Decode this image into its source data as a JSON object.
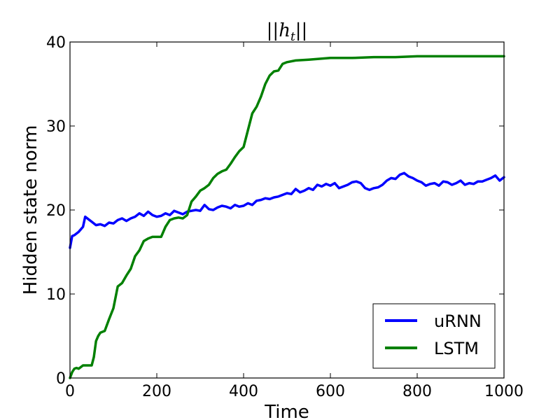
{
  "chart_data": {
    "type": "line",
    "title": "||h_t||",
    "xlabel": "Time",
    "ylabel": "Hidden state norm",
    "xlim": [
      0,
      1000
    ],
    "ylim": [
      0,
      40
    ],
    "xticks": [
      0,
      200,
      400,
      600,
      800,
      1000
    ],
    "yticks": [
      0,
      10,
      20,
      30,
      40
    ],
    "grid": false,
    "legend": "lower-right",
    "series": [
      {
        "name": "uRNN",
        "color": "#0000ff",
        "x": [
          0,
          5,
          10,
          20,
          30,
          35,
          40,
          50,
          60,
          70,
          80,
          90,
          100,
          110,
          120,
          130,
          140,
          150,
          160,
          170,
          180,
          190,
          200,
          210,
          220,
          230,
          240,
          250,
          260,
          270,
          280,
          290,
          300,
          310,
          320,
          330,
          340,
          350,
          360,
          370,
          380,
          390,
          400,
          410,
          420,
          430,
          440,
          450,
          460,
          470,
          480,
          490,
          500,
          510,
          520,
          530,
          540,
          550,
          560,
          570,
          580,
          590,
          600,
          610,
          620,
          630,
          640,
          650,
          660,
          670,
          680,
          690,
          700,
          710,
          720,
          730,
          740,
          750,
          760,
          770,
          780,
          790,
          800,
          810,
          820,
          830,
          840,
          850,
          860,
          870,
          880,
          890,
          900,
          910,
          920,
          930,
          940,
          950,
          960,
          970,
          980,
          990,
          1000
        ],
        "values": [
          15.5,
          16.9,
          17.0,
          17.4,
          18.0,
          19.2,
          19.0,
          18.6,
          18.2,
          18.3,
          18.1,
          18.5,
          18.4,
          18.8,
          19.0,
          18.7,
          19.0,
          19.2,
          19.6,
          19.3,
          19.8,
          19.4,
          19.2,
          19.3,
          19.6,
          19.4,
          19.9,
          19.7,
          19.5,
          19.8,
          19.9,
          20.0,
          19.9,
          20.6,
          20.1,
          20.0,
          20.3,
          20.5,
          20.4,
          20.2,
          20.6,
          20.4,
          20.5,
          20.8,
          20.6,
          21.1,
          21.2,
          21.4,
          21.3,
          21.5,
          21.6,
          21.8,
          22.0,
          21.9,
          22.5,
          22.1,
          22.3,
          22.6,
          22.4,
          23.0,
          22.8,
          23.1,
          22.9,
          23.2,
          22.6,
          22.8,
          23.0,
          23.3,
          23.4,
          23.2,
          22.6,
          22.4,
          22.6,
          22.7,
          23.0,
          23.5,
          23.8,
          23.7,
          24.2,
          24.4,
          24.0,
          23.8,
          23.5,
          23.3,
          22.9,
          23.1,
          23.2,
          22.9,
          23.4,
          23.3,
          23.0,
          23.2,
          23.5,
          23.0,
          23.2,
          23.1,
          23.4,
          23.4,
          23.6,
          23.8,
          24.1,
          23.5,
          23.9
        ]
      },
      {
        "name": "LSTM",
        "color": "#008000",
        "x": [
          0,
          5,
          10,
          15,
          20,
          30,
          40,
          50,
          55,
          60,
          65,
          70,
          80,
          90,
          100,
          110,
          120,
          130,
          140,
          150,
          160,
          170,
          180,
          190,
          200,
          210,
          220,
          230,
          240,
          250,
          260,
          270,
          280,
          290,
          300,
          310,
          320,
          330,
          340,
          350,
          360,
          370,
          380,
          390,
          400,
          410,
          420,
          430,
          440,
          450,
          460,
          470,
          480,
          490,
          500,
          520,
          550,
          600,
          650,
          700,
          750,
          800,
          850,
          900,
          950,
          1000
        ],
        "values": [
          0.0,
          0.7,
          1.1,
          1.2,
          1.1,
          1.5,
          1.5,
          1.5,
          2.5,
          4.4,
          5.0,
          5.4,
          5.6,
          7.0,
          8.3,
          10.9,
          11.3,
          12.2,
          13.0,
          14.5,
          15.2,
          16.3,
          16.6,
          16.8,
          16.8,
          16.8,
          18.0,
          18.8,
          19.0,
          19.1,
          19.0,
          19.4,
          21.0,
          21.6,
          22.3,
          22.6,
          23.0,
          23.8,
          24.3,
          24.6,
          24.8,
          25.5,
          26.3,
          27.0,
          27.5,
          29.5,
          31.5,
          32.3,
          33.5,
          35.0,
          36.0,
          36.5,
          36.6,
          37.4,
          37.6,
          37.8,
          37.9,
          38.1,
          38.1,
          38.2,
          38.2,
          38.3,
          38.3,
          38.3,
          38.3,
          38.3
        ]
      }
    ]
  }
}
